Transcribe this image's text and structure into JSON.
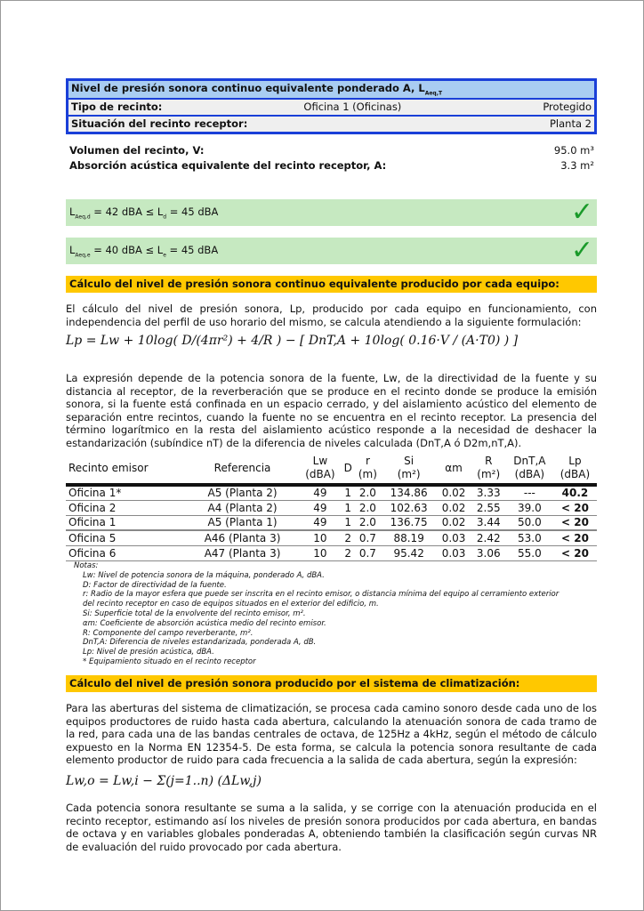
{
  "header": {
    "title": "Nivel de presión sonora continuo equivalente ponderado A, L",
    "title_sub": "Aeq,T",
    "tipo_label": "Tipo de recinto:",
    "tipo_value": "Oficina 1 (Oficinas)",
    "tipo_class": "Protegido",
    "situacion_label": "Situación del recinto receptor:",
    "situacion_value": "Planta 2"
  },
  "volumen": {
    "label": "Volumen del recinto, V:",
    "value": "95.0 m³"
  },
  "absorcion": {
    "label": "Absorción acústica equivalente del recinto receptor, A:",
    "value": "3.3 m²"
  },
  "checks": [
    {
      "text": "= 42 dBA ≤ L",
      "sub1": "Aeq,d",
      "sub2": "d",
      "tail": " = 45 dBA",
      "icon": "check-icon"
    },
    {
      "text": "= 40 dBA ≤ L",
      "sub1": "Aeq,e",
      "sub2": "e",
      "tail": " = 45 dBA",
      "icon": "check-icon"
    }
  ],
  "section1": {
    "title": "Cálculo del nivel de presión sonora continuo equivalente producido por cada equipo:",
    "intro": "El cálculo del nivel de presión sonora, Lp, producido por cada equipo en funcionamiento, con independencia del perfil de uso horario del mismo, se calcula atendiendo a la siguiente formulación:",
    "formula": "Lp = Lw + 10log( D/(4πr²) + 4/R ) − [ DnT,A + 10log( 0.16·V / (A·T0) ) ]",
    "body": "La expresión depende de la potencia sonora de la fuente, Lw, de la directividad de la fuente y su distancia al receptor, de la reverberación que se produce en el recinto donde se produce la emisión sonora, si la fuente está confinada en un espacio cerrado, y del aislamiento acústico del elemento de separación entre recintos, cuando la fuente no se encuentra en el recinto receptor. La presencia del término logarítmico en la resta del aislamiento acústico responde a la necesidad de deshacer la estandarización (subíndice nT) de la diferencia de niveles calculada (DnT,A ó D2m,nT,A)."
  },
  "table": {
    "headers": [
      "Recinto emisor",
      "Referencia",
      "Lw\n(dBA)",
      "D",
      "r\n(m)",
      "Si\n(m²)",
      "αm",
      "R\n(m²)",
      "DnT,A\n(dBA)",
      "Lp\n(dBA)"
    ],
    "rows": [
      [
        "Oficina 1*",
        "A5 (Planta 2)",
        "49",
        "1",
        "2.0",
        "134.86",
        "0.02",
        "3.33",
        "---",
        "40.2"
      ],
      [
        "Oficina 2",
        "A4 (Planta 2)",
        "49",
        "1",
        "2.0",
        "102.63",
        "0.02",
        "2.55",
        "39.0",
        "< 20"
      ],
      [
        "Oficina 1",
        "A5 (Planta 1)",
        "49",
        "1",
        "2.0",
        "136.75",
        "0.02",
        "3.44",
        "50.0",
        "< 20"
      ],
      [
        "Oficina 5",
        "A46 (Planta 3)",
        "10",
        "2",
        "0.7",
        "88.19",
        "0.03",
        "2.42",
        "53.0",
        "< 20"
      ],
      [
        "Oficina 6",
        "A47 (Planta 3)",
        "10",
        "2",
        "0.7",
        "95.42",
        "0.03",
        "3.06",
        "55.0",
        "< 20"
      ]
    ]
  },
  "notes": [
    "Notas:",
    "Lw: Nivel de potencia sonora de la máquina, ponderado A, dBA.",
    "D: Factor de directividad de la fuente.",
    "r: Radio de la mayor esfera que puede ser inscrita en el recinto emisor, o distancia mínima del equipo al cerramiento exterior",
    "del recinto receptor en caso de equipos situados en el exterior del edificio, m.",
    "Si: Superficie total de la envolvente del recinto emisor, m².",
    "αm: Coeficiente de absorción acústica medio del recinto emisor.",
    "R: Componente del campo reverberante, m².",
    "DnT,A: Diferencia de niveles estandarizada, ponderada A, dB.",
    "Lp: Nivel de presión acústica, dBA.",
    "* Equipamiento situado en el recinto receptor"
  ],
  "section2": {
    "title": "Cálculo del nivel de presión sonora producido por el sistema de climatización:",
    "intro": "Para las aberturas del sistema de climatización, se procesa cada camino sonoro desde cada uno de los equipos productores de ruido hasta cada abertura, calculando la atenuación sonora de cada tramo de la red, para cada una de las bandas centrales de octava, de 125Hz a 4kHz, según el método de cálculo expuesto en la Norma EN 12354-5. De esta forma, se calcula la potencia sonora resultante de cada elemento productor de ruido para cada frecuencia a la salida de cada abertura, según la expresión:",
    "formula": "Lw,o = Lw,i − Σ(j=1..n) (ΔLw,j)",
    "body": "Cada potencia sonora resultante se suma a la salida, y se corrige con la atenuación producida en el recinto receptor, estimando así los niveles de presión sonora producidos por cada abertura, en bandas de octava y en variables globales ponderadas A, obteniendo también la clasificación según curvas NR de evaluación del ruido provocado por cada abertura."
  }
}
